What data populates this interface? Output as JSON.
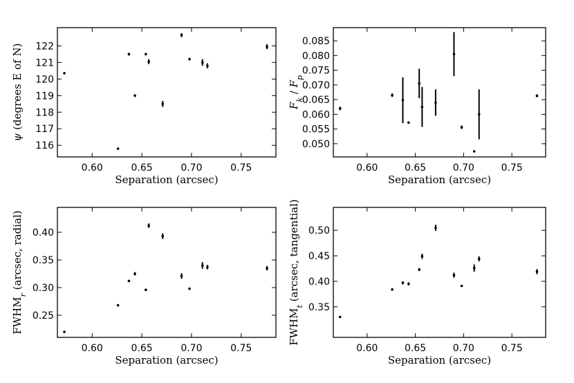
{
  "chart_data": [
    {
      "id": "psi",
      "type": "scatter",
      "xlabel": "Separation (arcsec)",
      "ylabel": "ψ (degrees E of N)",
      "xlim": [
        0.565,
        0.785
      ],
      "ylim": [
        115.3,
        123.1
      ],
      "xticks": [
        "0.60",
        "0.65",
        "0.70",
        "0.75"
      ],
      "yticks": [
        "116",
        "117",
        "118",
        "119",
        "120",
        "121",
        "122"
      ],
      "points": [
        {
          "x": 0.572,
          "y": 120.35,
          "err": 0.04
        },
        {
          "x": 0.626,
          "y": 115.8,
          "err": 0.04
        },
        {
          "x": 0.637,
          "y": 121.5,
          "err": 0.08
        },
        {
          "x": 0.643,
          "y": 119.0,
          "err": 0.08
        },
        {
          "x": 0.654,
          "y": 121.5,
          "err": 0.06
        },
        {
          "x": 0.657,
          "y": 121.05,
          "err": 0.15
        },
        {
          "x": 0.671,
          "y": 118.5,
          "err": 0.18
        },
        {
          "x": 0.69,
          "y": 122.65,
          "err": 0.12
        },
        {
          "x": 0.698,
          "y": 121.2,
          "err": 0.08
        },
        {
          "x": 0.711,
          "y": 121.0,
          "err": 0.2
        },
        {
          "x": 0.716,
          "y": 120.8,
          "err": 0.15
        },
        {
          "x": 0.776,
          "y": 121.95,
          "err": 0.15
        }
      ]
    },
    {
      "id": "flux",
      "type": "scatter",
      "xlabel": "Separation (arcsec)",
      "ylabel": "F_k / F_p",
      "xlim": [
        0.565,
        0.785
      ],
      "ylim": [
        0.0455,
        0.0895
      ],
      "xticks": [
        "0.60",
        "0.65",
        "0.70",
        "0.75"
      ],
      "yticks": [
        "0.050",
        "0.055",
        "0.060",
        "0.065",
        "0.070",
        "0.075",
        "0.080",
        "0.085"
      ],
      "points": [
        {
          "x": 0.572,
          "y": 0.062,
          "err": 0.0006
        },
        {
          "x": 0.626,
          "y": 0.0665,
          "err": 0.0006
        },
        {
          "x": 0.637,
          "y": 0.0648,
          "err": 0.0078
        },
        {
          "x": 0.643,
          "y": 0.0572,
          "err": 0.0002
        },
        {
          "x": 0.654,
          "y": 0.0705,
          "err": 0.005
        },
        {
          "x": 0.657,
          "y": 0.0625,
          "err": 0.0068
        },
        {
          "x": 0.671,
          "y": 0.064,
          "err": 0.0045
        },
        {
          "x": 0.69,
          "y": 0.0805,
          "err": 0.0075
        },
        {
          "x": 0.698,
          "y": 0.0556,
          "err": 0.0006
        },
        {
          "x": 0.711,
          "y": 0.0474,
          "err": 0.0002
        },
        {
          "x": 0.716,
          "y": 0.06,
          "err": 0.0085
        },
        {
          "x": 0.776,
          "y": 0.0663,
          "err": 0.0005
        }
      ]
    },
    {
      "id": "fwhm_radial",
      "type": "scatter",
      "xlabel": "Separation (arcsec)",
      "ylabel": "FWHM_r (arcsec, radial)",
      "xlim": [
        0.565,
        0.785
      ],
      "ylim": [
        0.21,
        0.445
      ],
      "xticks": [
        "0.60",
        "0.65",
        "0.70",
        "0.75"
      ],
      "yticks": [
        "0.25",
        "0.30",
        "0.35",
        "0.40"
      ],
      "points": [
        {
          "x": 0.572,
          "y": 0.22,
          "err": 0.001
        },
        {
          "x": 0.626,
          "y": 0.268,
          "err": 0.001
        },
        {
          "x": 0.637,
          "y": 0.312,
          "err": 0.002
        },
        {
          "x": 0.643,
          "y": 0.325,
          "err": 0.003
        },
        {
          "x": 0.654,
          "y": 0.296,
          "err": 0.002
        },
        {
          "x": 0.657,
          "y": 0.412,
          "err": 0.004
        },
        {
          "x": 0.671,
          "y": 0.393,
          "err": 0.005
        },
        {
          "x": 0.69,
          "y": 0.321,
          "err": 0.005
        },
        {
          "x": 0.698,
          "y": 0.298,
          "err": 0.002
        },
        {
          "x": 0.711,
          "y": 0.34,
          "err": 0.006
        },
        {
          "x": 0.716,
          "y": 0.337,
          "err": 0.004
        },
        {
          "x": 0.776,
          "y": 0.335,
          "err": 0.004
        }
      ]
    },
    {
      "id": "fwhm_tangential",
      "type": "scatter",
      "xlabel": "Separation (arcsec)",
      "ylabel": "FWHM_t (arcsec, tangential)",
      "xlim": [
        0.565,
        0.785
      ],
      "ylim": [
        0.29,
        0.545
      ],
      "xticks": [
        "0.60",
        "0.65",
        "0.70",
        "0.75"
      ],
      "yticks": [
        "0.35",
        "0.40",
        "0.45",
        "0.50"
      ],
      "points": [
        {
          "x": 0.572,
          "y": 0.33,
          "err": 0.002
        },
        {
          "x": 0.626,
          "y": 0.384,
          "err": 0.001
        },
        {
          "x": 0.637,
          "y": 0.397,
          "err": 0.003
        },
        {
          "x": 0.643,
          "y": 0.395,
          "err": 0.003
        },
        {
          "x": 0.654,
          "y": 0.423,
          "err": 0.003
        },
        {
          "x": 0.657,
          "y": 0.449,
          "err": 0.005
        },
        {
          "x": 0.671,
          "y": 0.505,
          "err": 0.006
        },
        {
          "x": 0.69,
          "y": 0.412,
          "err": 0.005
        },
        {
          "x": 0.698,
          "y": 0.391,
          "err": 0.002
        },
        {
          "x": 0.711,
          "y": 0.426,
          "err": 0.007
        },
        {
          "x": 0.716,
          "y": 0.444,
          "err": 0.005
        },
        {
          "x": 0.776,
          "y": 0.419,
          "err": 0.005
        }
      ]
    }
  ]
}
